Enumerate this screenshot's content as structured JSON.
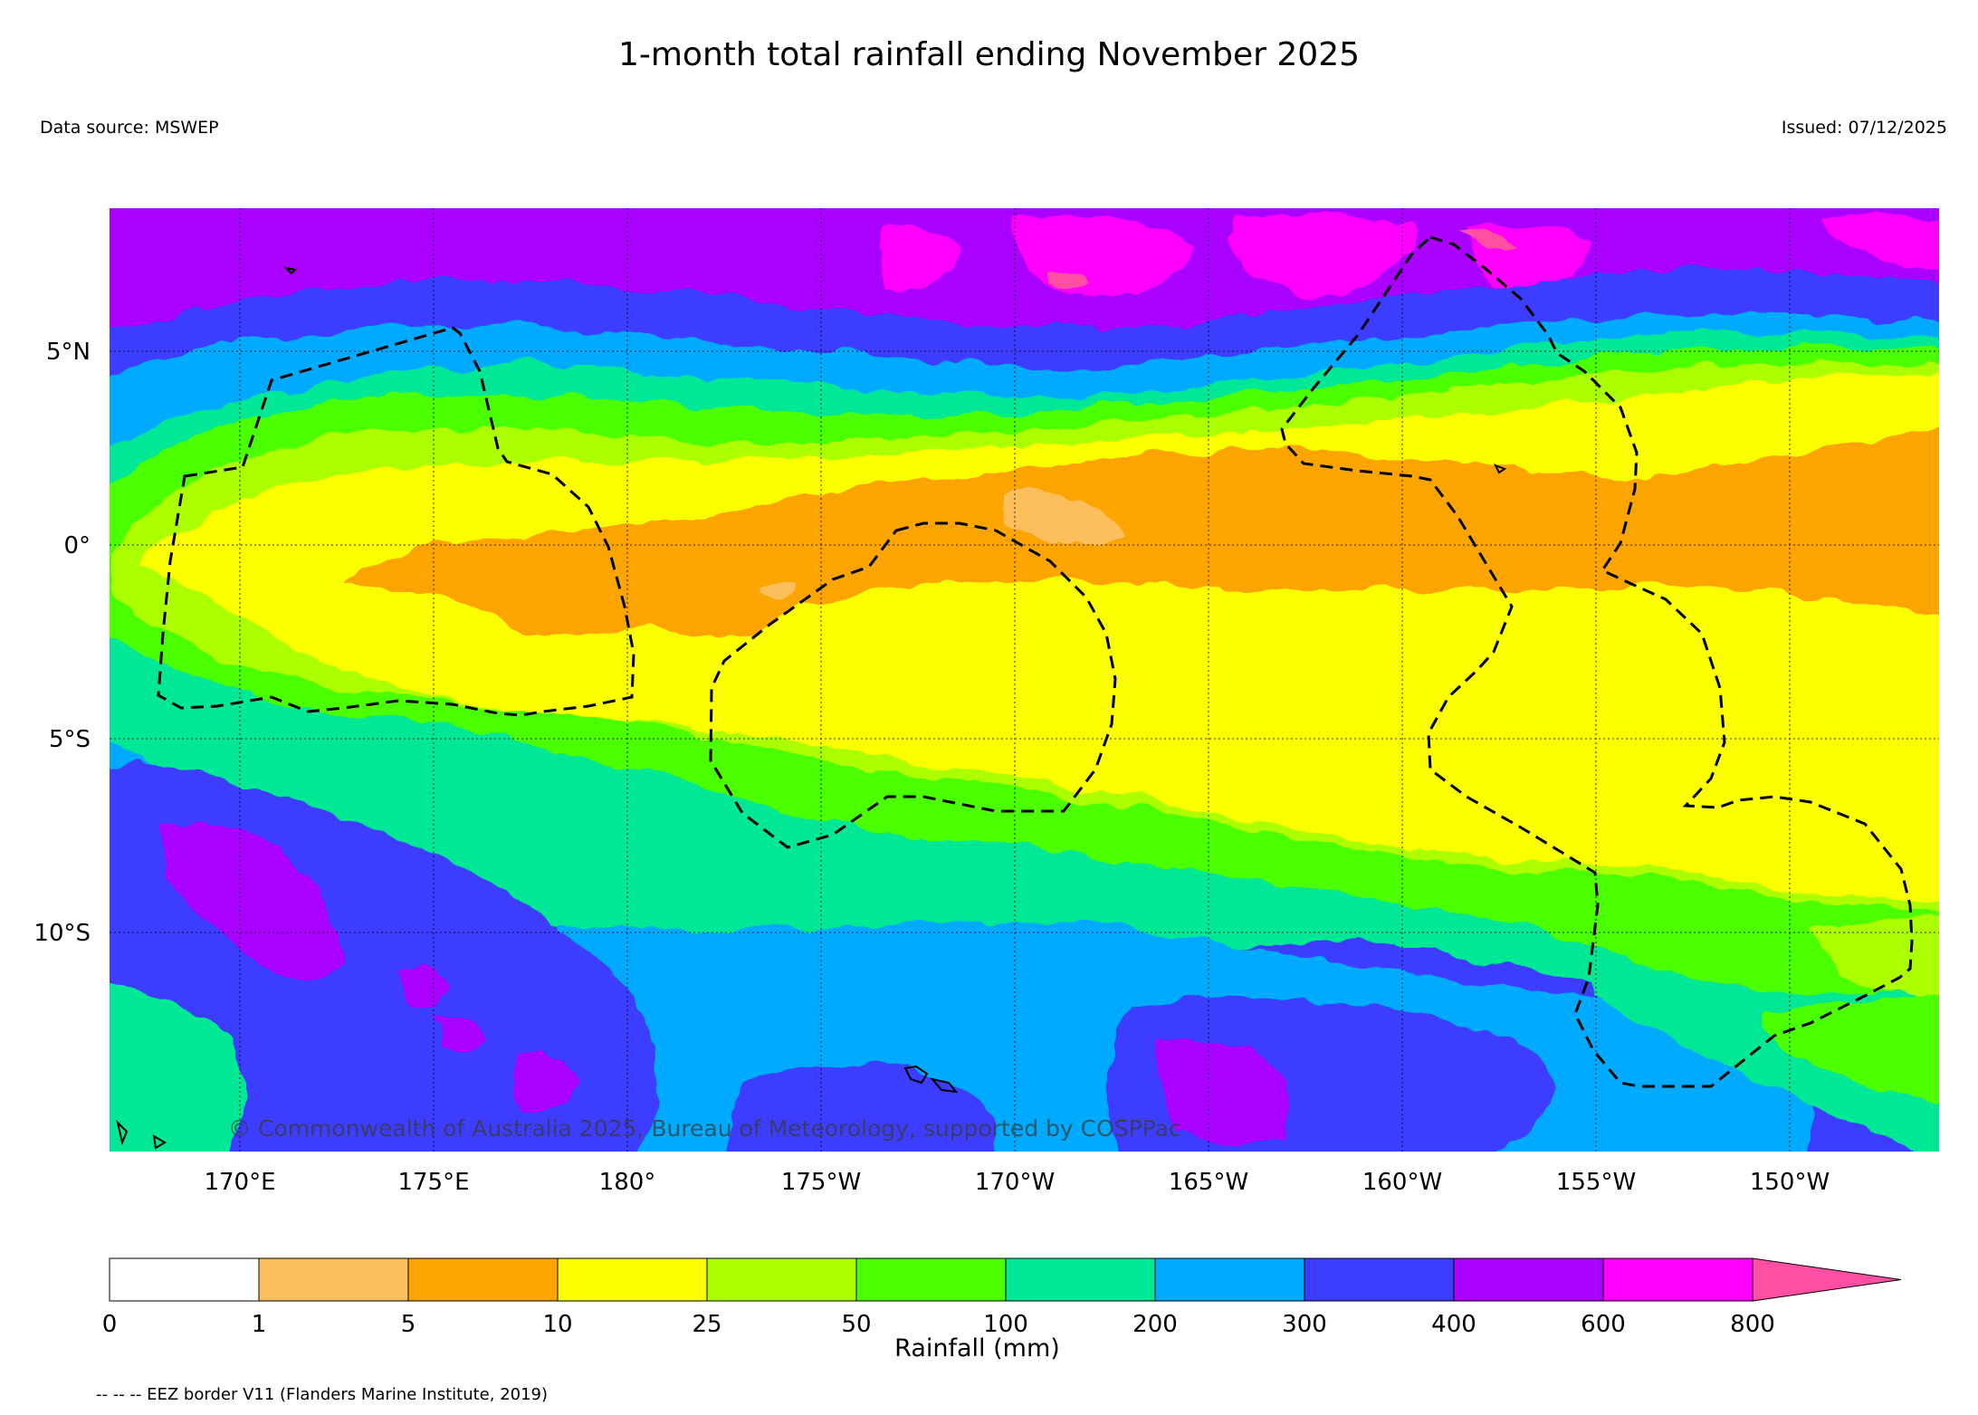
{
  "title": "1-month total rainfall ending November 2025",
  "data_source": "Data source: MSWEP",
  "issued": "Issued: 07/12/2025",
  "copyright": "© Commonwealth of Australia 2025, Bureau of Meteorology, supported by COSPPac",
  "eez_note": "-- -- -- EEZ border V11 (Flanders Marine Institute, 2019)",
  "map": {
    "lat_ticks": [
      "5°N",
      "0°",
      "5°S",
      "10°S"
    ],
    "lon_ticks": [
      "170°E",
      "175°E",
      "180°",
      "175°W",
      "170°W",
      "165°W",
      "160°W",
      "155°W",
      "150°W"
    ]
  },
  "colorbar": {
    "label": "Rainfall (mm)",
    "tick_labels": [
      "0",
      "1",
      "5",
      "10",
      "25",
      "50",
      "100",
      "200",
      "300",
      "400",
      "600",
      "800"
    ],
    "colors": [
      "#ffffff",
      "#fdbe5c",
      "#fca500",
      "#fbff00",
      "#acff00",
      "#4cff00",
      "#00e796",
      "#00aaff",
      "#3c3cff",
      "#aa00ff",
      "#ff00ff",
      "#ff4fa3"
    ]
  }
}
